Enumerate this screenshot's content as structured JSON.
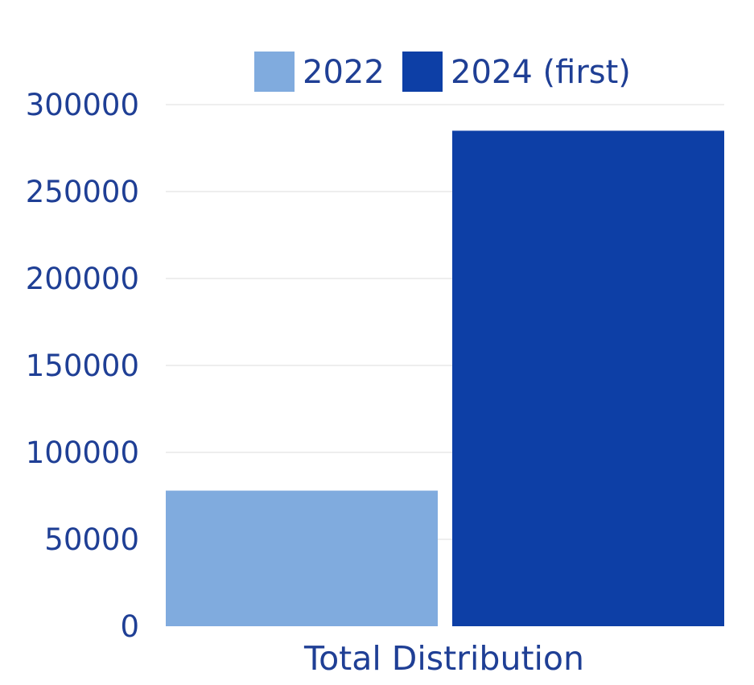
{
  "chart_data": {
    "type": "bar",
    "categories": [
      "Total Distribution"
    ],
    "series": [
      {
        "name": "2022",
        "values": [
          78000
        ],
        "color": "#80abde"
      },
      {
        "name": "2024 (first)",
        "values": [
          285000
        ],
        "color": "#0d3fa6"
      }
    ],
    "ylim": [
      0,
      300000
    ],
    "yticks": [
      0,
      50000,
      100000,
      150000,
      200000,
      250000,
      300000
    ],
    "grid": true,
    "legend_position": "top-center",
    "title": "",
    "xlabel": "",
    "ylabel": ""
  },
  "colors": {
    "text": "#1f3f95",
    "grid": "#dcdcdc"
  }
}
